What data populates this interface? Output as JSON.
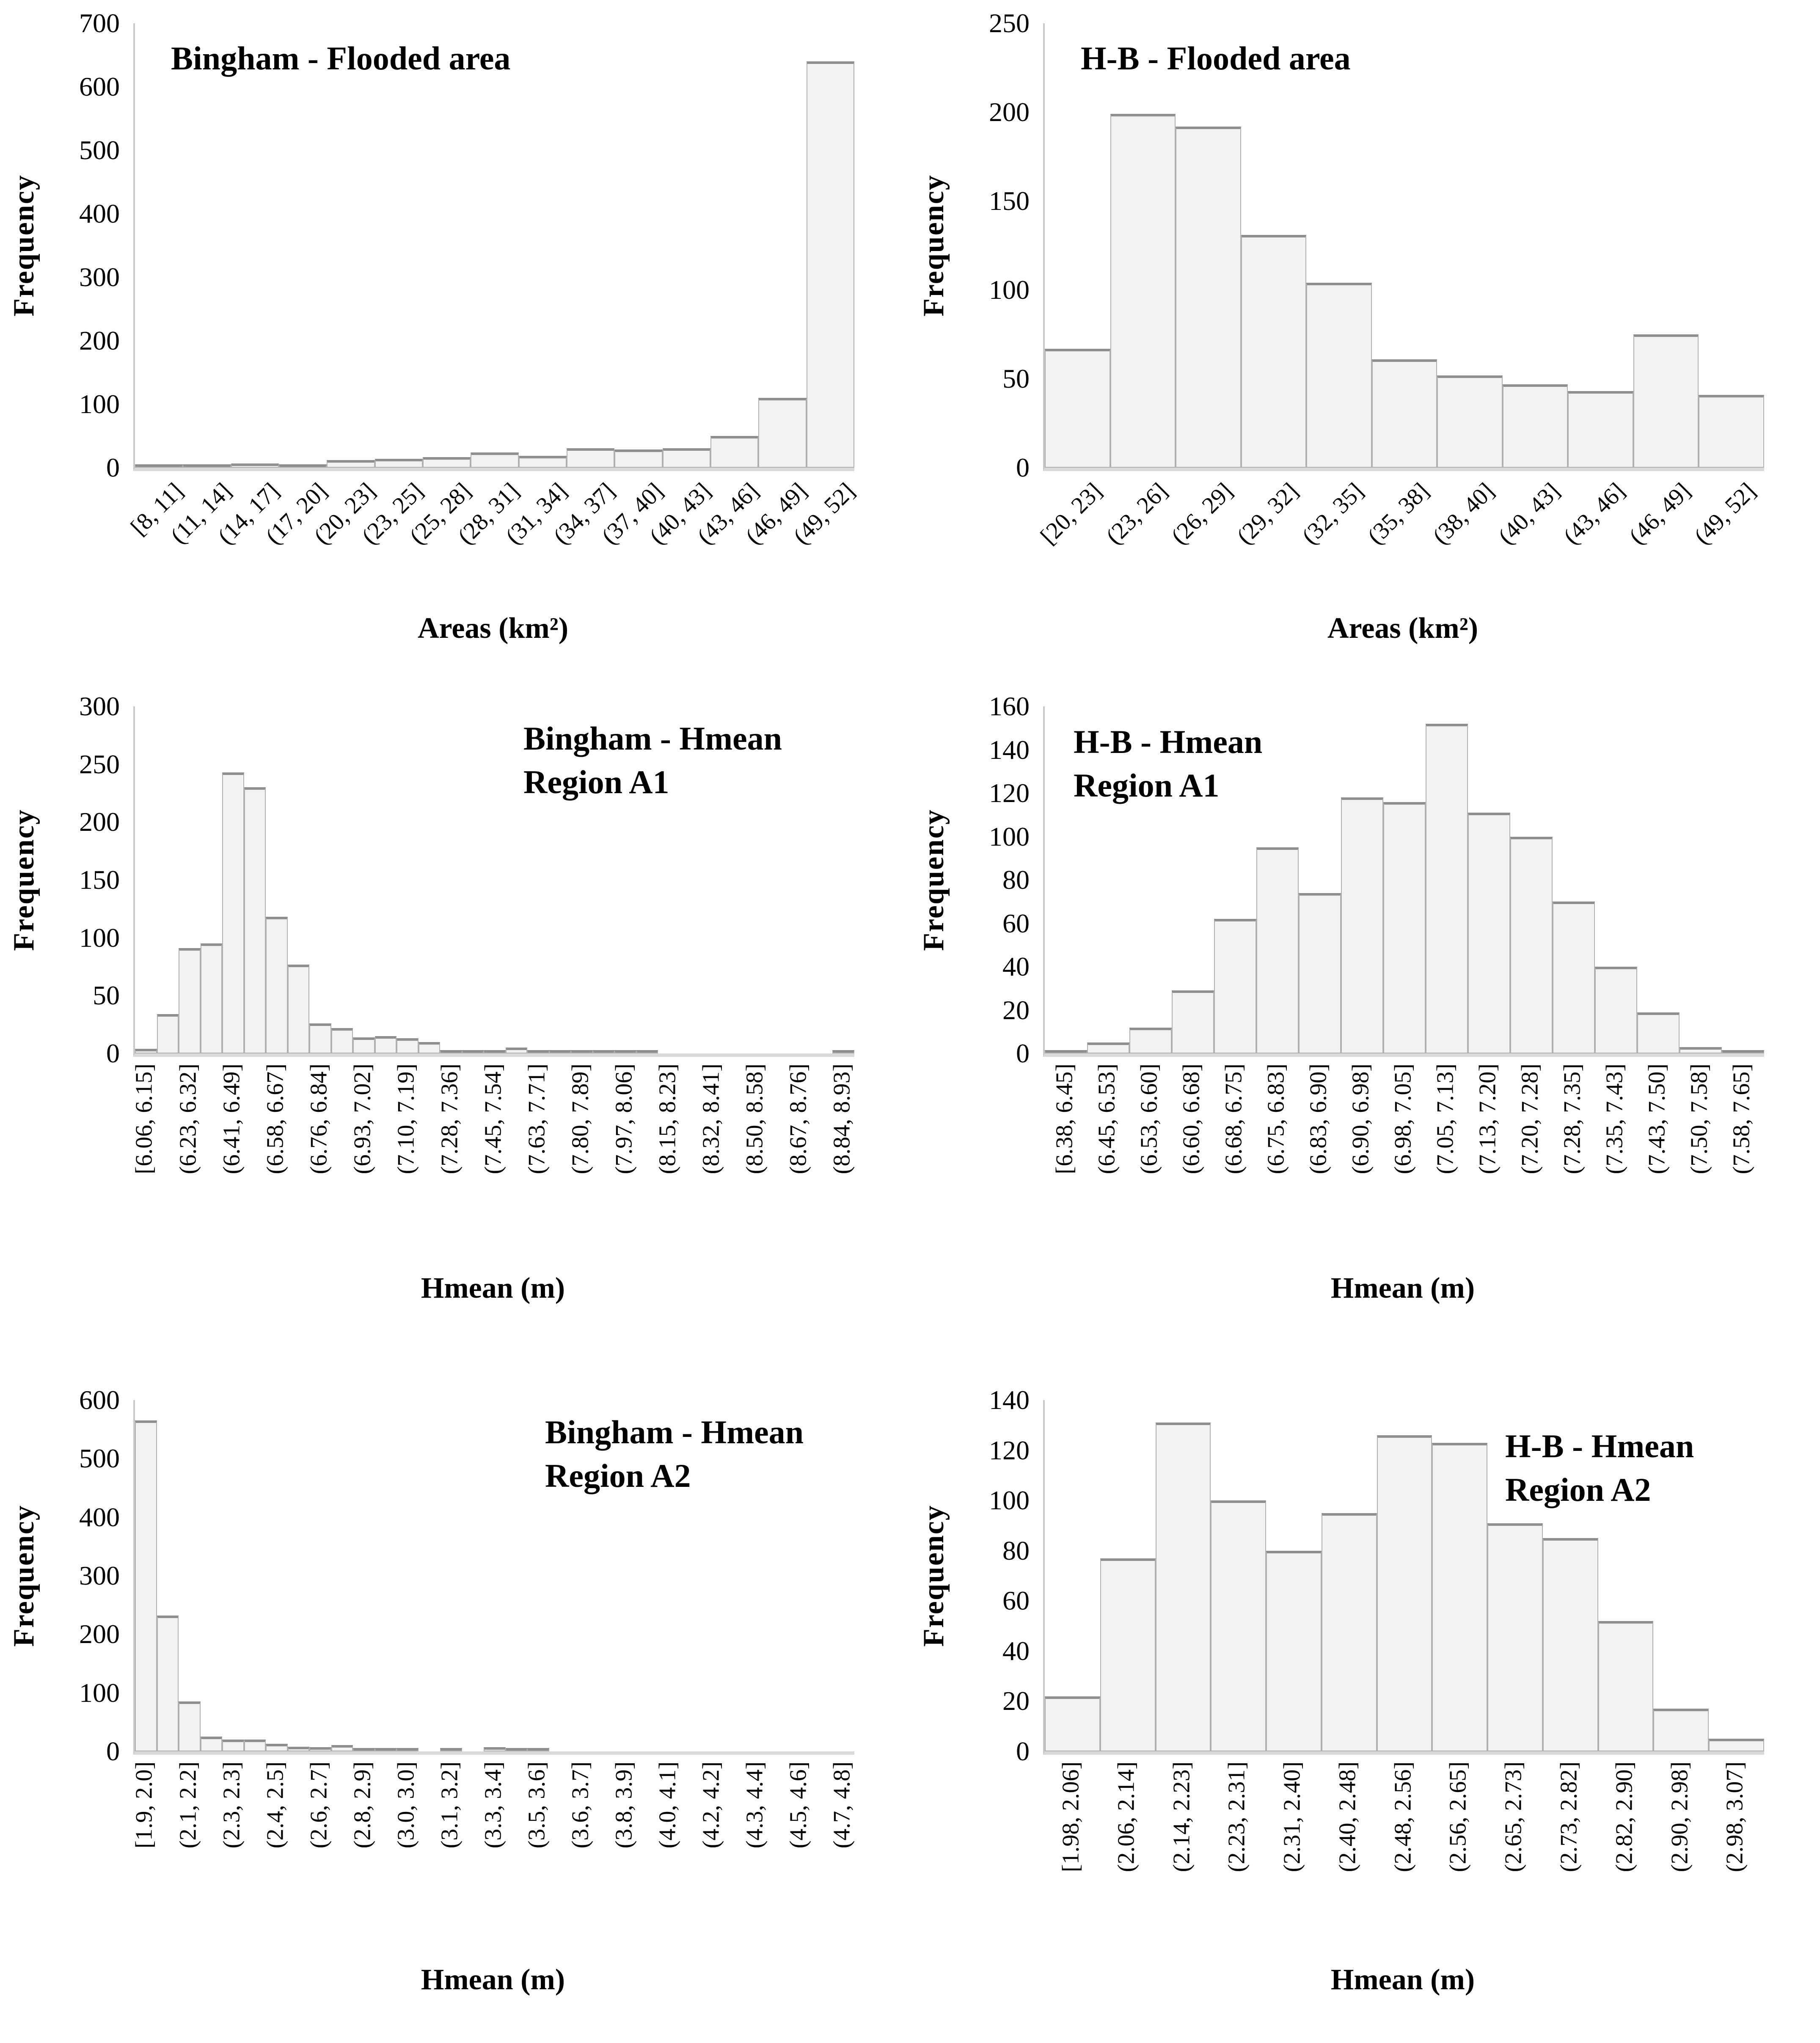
{
  "colors": {
    "bar_fill": "#f2f2f2",
    "bar_border": "#b0b0b0",
    "bar_top_border": "#8f8f8f",
    "axis_line": "#c8c8c8",
    "baseline": "#d9d9d9",
    "text": "#000000"
  },
  "chart_data": [
    {
      "type": "bar",
      "title": "Bingham - Flooded area",
      "title_lines": [
        "Bingham - Flooded area"
      ],
      "ylabel": "Frequency",
      "xlabel": "Areas (km²)",
      "ylim": [
        0,
        700
      ],
      "y_step": 100,
      "grid": false,
      "x_label_rotation": 45,
      "bins_per_label": 1,
      "categories": [
        "[8, 11]",
        "(11, 14]",
        "(14, 17]",
        "(17, 20]",
        "(20, 23]",
        "(23, 25]",
        "(25, 28]",
        "(28, 31]",
        "(31, 34]",
        "(34, 37]",
        "(37, 40]",
        "(40, 43]",
        "(43, 46]",
        "(46, 49]",
        "(49, 52]"
      ],
      "values": [
        1,
        2,
        7,
        1,
        12,
        14,
        17,
        24,
        19,
        31,
        29,
        31,
        50,
        110,
        640
      ]
    },
    {
      "type": "bar",
      "title": "H-B - Flooded area",
      "title_lines": [
        "H-B - Flooded area"
      ],
      "ylabel": "Frequency",
      "xlabel": "Areas (km²)",
      "ylim": [
        0,
        250
      ],
      "y_step": 50,
      "grid": false,
      "x_label_rotation": 45,
      "bins_per_label": 1,
      "categories": [
        "[20, 23]",
        "(23, 26]",
        "(26, 29]",
        "(29, 32]",
        "(32, 35]",
        "(35, 38]",
        "(38, 40]",
        "(40, 43]",
        "(43, 46]",
        "(46, 49]",
        "(49, 52]"
      ],
      "values": [
        67,
        199,
        192,
        131,
        104,
        61,
        52,
        47,
        43,
        75,
        41
      ]
    },
    {
      "type": "bar",
      "title": "Bingham - Hmean Region A1",
      "title_lines": [
        "Bingham - Hmean",
        "Region A1"
      ],
      "ylabel": "Frequency",
      "xlabel": "Hmean (m)",
      "ylim": [
        0,
        300
      ],
      "y_step": 50,
      "grid": false,
      "x_label_rotation": 90,
      "bins_per_label": 2,
      "categories": [
        "[6.06, 6.15]",
        "(6.23, 6.32]",
        "(6.41, 6.49]",
        "(6.58, 6.67]",
        "(6.76, 6.84]",
        "(6.93, 7.02]",
        "(7.10, 7.19]",
        "(7.28, 7.36]",
        "(7.45, 7.54]",
        "(7.63, 7.71]",
        "(7.80, 7.89]",
        "(7.97, 8.06]",
        "(8.15, 8.23]",
        "(8.32, 8.41]",
        "(8.50, 8.58]",
        "(8.67, 8.76]",
        "(8.84, 8.93]"
      ],
      "values": [
        4,
        34,
        91,
        95,
        243,
        230,
        118,
        77,
        26,
        22,
        14,
        15,
        13,
        10,
        3,
        2,
        1,
        5,
        3,
        2,
        1,
        1,
        1,
        1,
        0,
        0,
        0,
        0,
        0,
        0,
        0,
        0,
        2
      ]
    },
    {
      "type": "bar",
      "title": "H-B - Hmean Region A1",
      "title_lines": [
        "H-B - Hmean",
        "Region A1"
      ],
      "ylabel": "Frequency",
      "xlabel": "Hmean (m)",
      "ylim": [
        0,
        160
      ],
      "y_step": 20,
      "grid": false,
      "x_label_rotation": 90,
      "bins_per_label": 1,
      "categories": [
        "[6.38, 6.45]",
        "(6.45, 6.53]",
        "(6.53, 6.60]",
        "(6.60, 6.68]",
        "(6.68, 6.75]",
        "(6.75, 6.83]",
        "(6.83, 6.90]",
        "(6.90, 6.98]",
        "(6.98, 7.05]",
        "(7.05, 7.13]",
        "(7.13, 7.20]",
        "(7.20, 7.28]",
        "(7.28, 7.35]",
        "(7.35, 7.43]",
        "(7.43, 7.50]",
        "(7.50, 7.58]",
        "(7.58, 7.65]"
      ],
      "values": [
        1,
        5,
        12,
        29,
        62,
        95,
        74,
        118,
        116,
        152,
        111,
        100,
        70,
        40,
        19,
        3,
        1
      ]
    },
    {
      "type": "bar",
      "title": "Bingham - Hmean Region A2",
      "title_lines": [
        "Bingham - Hmean",
        "Region A2"
      ],
      "ylabel": "Frequency",
      "xlabel": "Hmean (m)",
      "ylim": [
        0,
        600
      ],
      "y_step": 100,
      "grid": false,
      "x_label_rotation": 90,
      "bins_per_label": 2,
      "categories": [
        "[1.9, 2.0]",
        "(2.1, 2.2]",
        "(2.3, 2.3]",
        "(2.4, 2.5]",
        "(2.6, 2.7]",
        "(2.8, 2.9]",
        "(3.0, 3.0]",
        "(3.1, 3.2]",
        "(3.3, 3.4]",
        "(3.5, 3.6]",
        "(3.6, 3.7]",
        "(3.8, 3.9]",
        "(4.0, 4.1]",
        "(4.2, 4.2]",
        "(4.3, 4.4]",
        "(4.5, 4.6]",
        "(4.7, 4.8]"
      ],
      "values": [
        565,
        232,
        85,
        25,
        20,
        20,
        13,
        8,
        7,
        11,
        6,
        2,
        2,
        0,
        2,
        0,
        7,
        3,
        1,
        0,
        0,
        0,
        0,
        0,
        0,
        0,
        0,
        0,
        0,
        0,
        0,
        0,
        0
      ]
    },
    {
      "type": "bar",
      "title": "H-B - Hmean Region A2",
      "title_lines": [
        "H-B - Hmean",
        "Region A2"
      ],
      "ylabel": "Frequency",
      "xlabel": "Hmean (m)",
      "ylim": [
        0,
        140
      ],
      "y_step": 20,
      "grid": false,
      "x_label_rotation": 90,
      "bins_per_label": 1,
      "categories": [
        "[1.98, 2.06]",
        "(2.06, 2.14]",
        "(2.14, 2.23]",
        "(2.23, 2.31]",
        "(2.31, 2.40]",
        "(2.40, 2.48]",
        "(2.48, 2.56]",
        "(2.56, 2.65]",
        "(2.65, 2.73]",
        "(2.73, 2.82]",
        "(2.82, 2.90]",
        "(2.90, 2.98]",
        "(2.98, 3.07]"
      ],
      "values": [
        22,
        77,
        131,
        100,
        80,
        95,
        126,
        123,
        91,
        85,
        52,
        17,
        5
      ]
    }
  ]
}
